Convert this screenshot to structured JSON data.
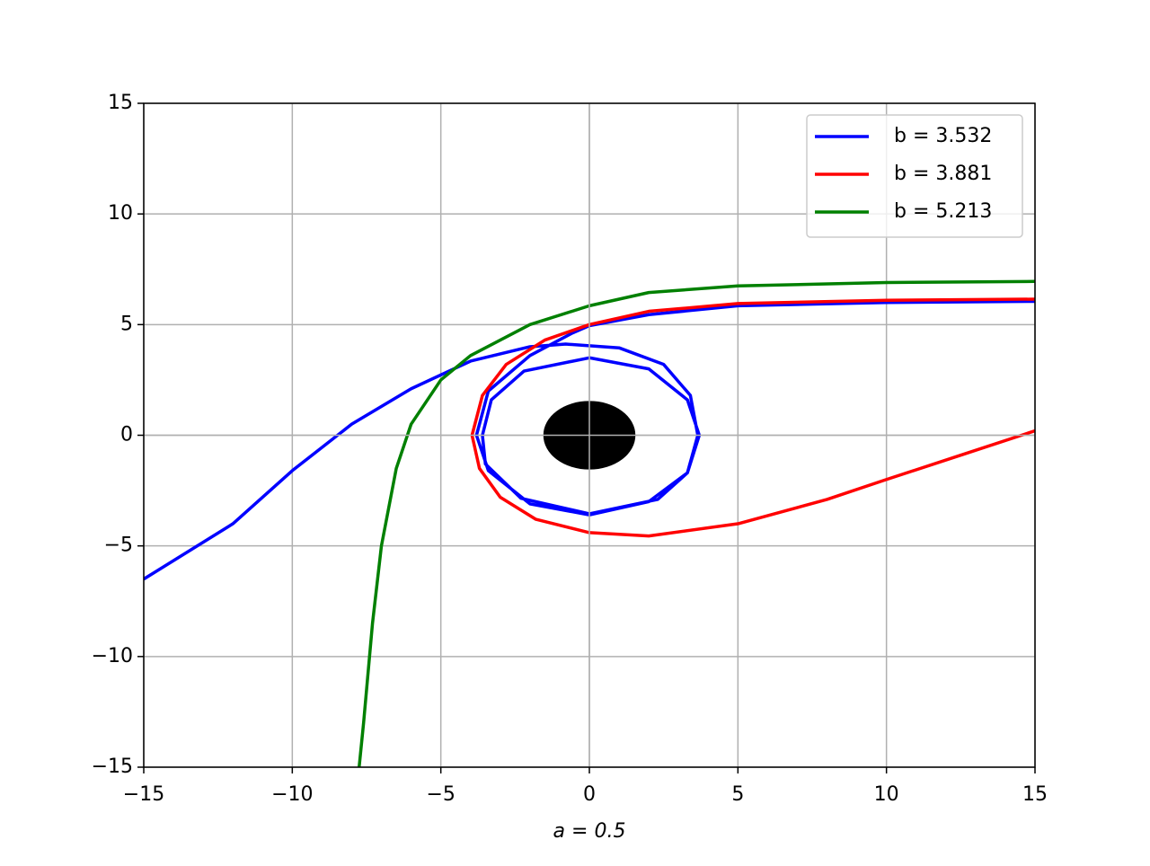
{
  "chart_data": {
    "type": "line",
    "xlabel": "a = 0.5",
    "xlim": [
      -15,
      15
    ],
    "ylim": [
      -15,
      15
    ],
    "xticks": [
      {
        "value": -15,
        "label": "−15"
      },
      {
        "value": -10,
        "label": "−10"
      },
      {
        "value": -5,
        "label": "−5"
      },
      0,
      5,
      10,
      15
    ],
    "yticks": [
      {
        "value": -15,
        "label": "−15"
      },
      {
        "value": -10,
        "label": "−10"
      },
      {
        "value": -5,
        "label": "−5"
      },
      0,
      5,
      10,
      15
    ],
    "grid": true,
    "legend": "upper right",
    "circle": {
      "x": 0,
      "y": 0,
      "r": 1.55,
      "color": "#000000"
    },
    "series": [
      {
        "name": "b = 3.532",
        "color": "#0000ff",
        "x": [
          -15,
          -12,
          -10,
          -8,
          -6,
          -4,
          -2,
          -0.8,
          1,
          2.5,
          3.4,
          3.65,
          3.3,
          2.3,
          0,
          -2.3,
          -3.5,
          -3.6,
          -3.3,
          -2.2,
          0,
          2,
          3.3,
          3.7,
          3.3,
          2,
          0,
          -2,
          -3.4,
          -3.8,
          -3.4,
          -2,
          -0.6,
          0,
          2,
          5,
          10,
          15
        ],
        "values": [
          -6.5,
          -4,
          -1.6,
          0.5,
          2.1,
          3.35,
          4,
          4.12,
          3.95,
          3.2,
          1.8,
          0,
          -1.7,
          -2.9,
          -3.55,
          -2.85,
          -1.3,
          0,
          1.6,
          2.9,
          3.5,
          3.0,
          1.6,
          0,
          -1.7,
          -3.0,
          -3.6,
          -3.1,
          -1.6,
          0,
          2.0,
          3.6,
          4.6,
          4.95,
          5.45,
          5.85,
          6.0,
          6.05
        ]
      },
      {
        "name": "b = 3.881",
        "color": "#ff0000",
        "x": [
          15,
          10,
          5,
          2,
          0,
          -1.5,
          -2.8,
          -3.6,
          -3.95,
          -3.7,
          -3,
          -1.8,
          0,
          2,
          5,
          8,
          10,
          12.5,
          15
        ],
        "values": [
          6.15,
          6.1,
          5.95,
          5.6,
          5.0,
          4.3,
          3.2,
          1.8,
          0,
          -1.5,
          -2.8,
          -3.8,
          -4.4,
          -4.55,
          -4.0,
          -2.9,
          -2.0,
          -0.9,
          0.2
        ]
      },
      {
        "name": "b = 5.213",
        "color": "#008000",
        "x": [
          15,
          10,
          5,
          2,
          0,
          -2,
          -4,
          -5,
          -6,
          -6.5,
          -7,
          -7.3,
          -7.6,
          -7.75
        ],
        "values": [
          6.95,
          6.9,
          6.75,
          6.45,
          5.85,
          5.0,
          3.6,
          2.5,
          0.5,
          -1.5,
          -5,
          -8.5,
          -13,
          -15
        ]
      }
    ]
  }
}
